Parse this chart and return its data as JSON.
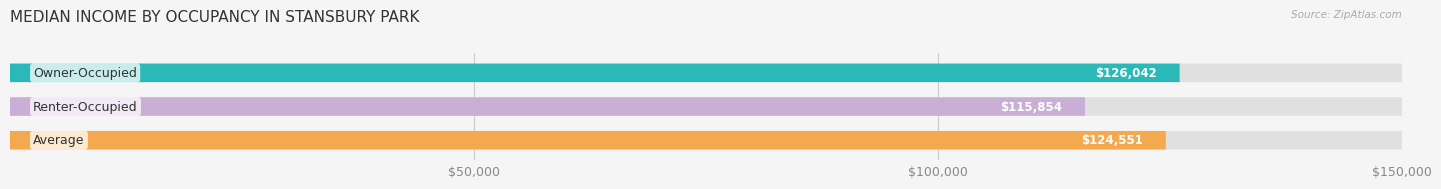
{
  "title": "MEDIAN INCOME BY OCCUPANCY IN STANSBURY PARK",
  "source": "Source: ZipAtlas.com",
  "categories": [
    "Owner-Occupied",
    "Renter-Occupied",
    "Average"
  ],
  "values": [
    126042,
    115854,
    124551
  ],
  "bar_colors": [
    "#2ab8b8",
    "#c9aed6",
    "#f5a94e"
  ],
  "bar_labels": [
    "$126,042",
    "$115,854",
    "$124,551"
  ],
  "background_color": "#f5f5f5",
  "bar_background_color": "#e0e0e0",
  "xlim": [
    0,
    150000
  ],
  "xticks": [
    50000,
    100000,
    150000
  ],
  "xtick_labels": [
    "$50,000",
    "$100,000",
    "$150,000"
  ],
  "label_fontsize": 9,
  "title_fontsize": 11,
  "value_fontsize": 8.5
}
